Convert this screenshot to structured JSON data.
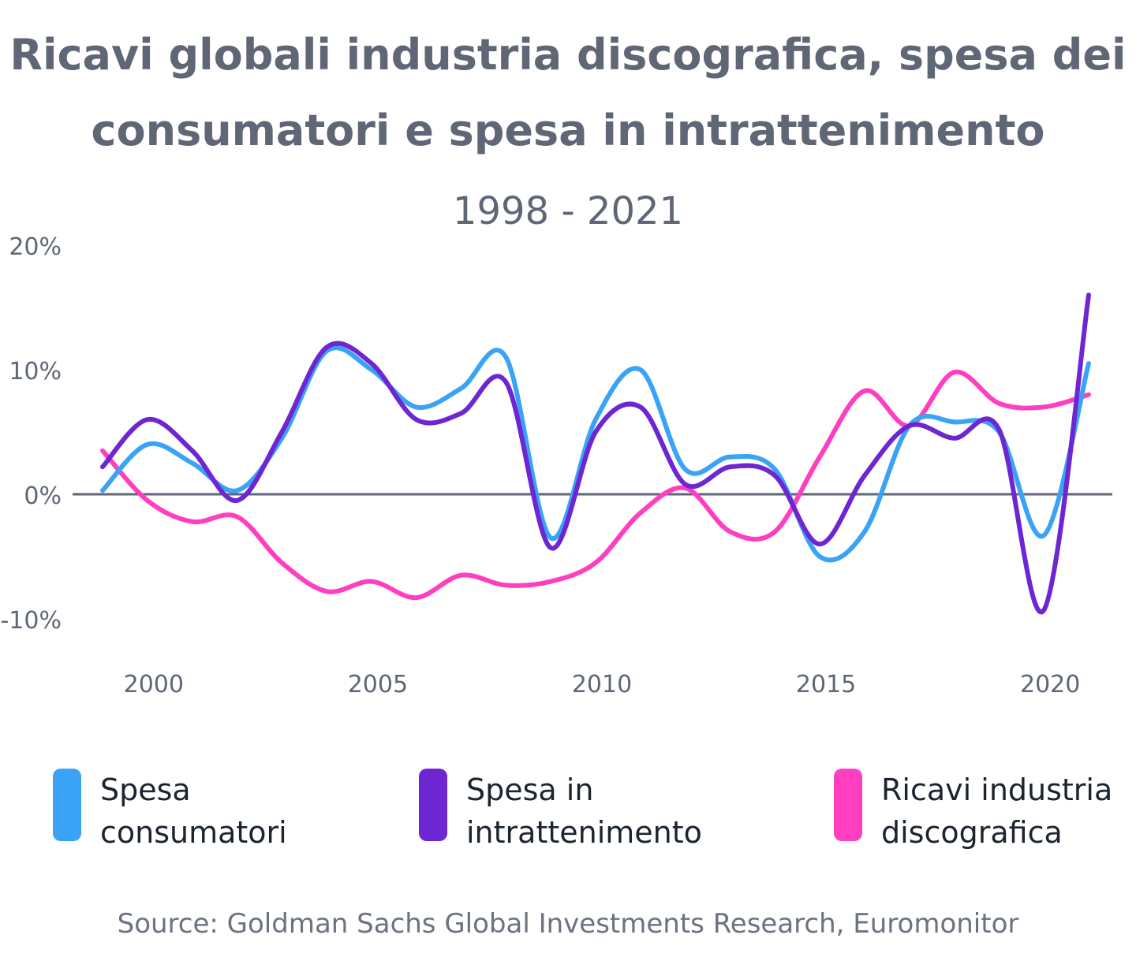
{
  "chart_data": {
    "type": "line",
    "title": "Ricavi globali industria discografica, spesa dei consumatori e spesa in intrattenimento",
    "subtitle": "1998 - 2021",
    "xlabel": "",
    "ylabel": "",
    "x": [
      1999,
      2000,
      2001,
      2002,
      2003,
      2004,
      2005,
      2006,
      2007,
      2008,
      2009,
      2010,
      2011,
      2012,
      2013,
      2014,
      2015,
      2016,
      2017,
      2018,
      2019,
      2020,
      2021
    ],
    "xlim": [
      1999,
      2021
    ],
    "ylim": [
      -10,
      20
    ],
    "x_ticks": [
      "2000",
      "2005",
      "2010",
      "2015",
      "2020"
    ],
    "y_ticks": [
      "20%",
      "10%",
      "0%",
      "-10%"
    ],
    "grid": false,
    "legend_position": "bottom",
    "series": [
      {
        "name": "Spesa consumatori",
        "color": "#3aa3f5",
        "values": [
          0.3,
          4,
          2.5,
          0.3,
          4.5,
          11.5,
          10,
          7,
          8.5,
          11,
          -3.5,
          6,
          10,
          2,
          3,
          2,
          -5,
          -3,
          5.5,
          5.8,
          5,
          -3.3,
          10.5
        ]
      },
      {
        "name": "Spesa in intrattenimento",
        "color": "#6e26d2",
        "values": [
          2.2,
          6,
          3.5,
          -0.5,
          5,
          11.8,
          10.5,
          6,
          6.5,
          9,
          -4.3,
          5,
          7,
          0.8,
          2.2,
          1.5,
          -4,
          1.5,
          5.5,
          4.5,
          5.2,
          -9.3,
          16
        ]
      },
      {
        "name": "Ricavi industria discografica",
        "color": "#ff3fc0",
        "values": [
          3.5,
          -0.5,
          -2.2,
          -1.8,
          -5.5,
          -7.8,
          -7,
          -8.3,
          -6.5,
          -7.3,
          -7,
          -5.5,
          -1.5,
          0.5,
          -3,
          -3,
          3,
          8.3,
          5.5,
          9.8,
          7.3,
          7,
          8
        ]
      }
    ],
    "legend": [
      {
        "label": "Spesa\nconsumatori",
        "color": "#3aa3f5"
      },
      {
        "label": "Spesa in\nintrattenimento",
        "color": "#6e26d2"
      },
      {
        "label": "Ricavi industria\ndiscografica",
        "color": "#ff3fc0"
      }
    ],
    "source": "Source: Goldman Sachs Global Investments Research, Euromonitor"
  }
}
